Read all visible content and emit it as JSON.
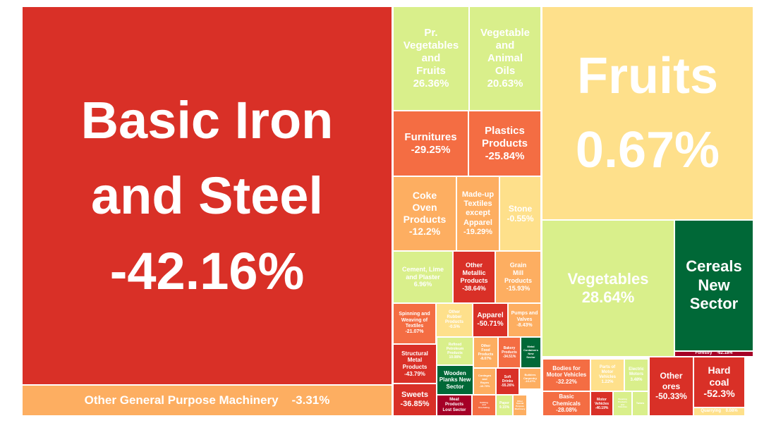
{
  "chart_data": {
    "type": "treemap",
    "title": "",
    "value_unit": "%",
    "color_scale": {
      "neg_large": "#d93027",
      "neg_mid": "#f46d43",
      "neg_small": "#fdae61",
      "neutral": "#fee08b",
      "pos_small": "#d9ef8b",
      "pos_large": "#006837",
      "neg_extreme": "#a50026"
    },
    "items": [
      {
        "name": "Basic Iron and Steel",
        "change": "-42.16%",
        "value": -42.16
      },
      {
        "name": "Other General Purpose Machinery",
        "change": "-3.31%",
        "value": -3.31
      },
      {
        "name": "Pr. Vegetables and Fruits",
        "change": "26.36%",
        "value": 26.36
      },
      {
        "name": "Vegetable and Animal Oils",
        "change": "20.63%",
        "value": 20.63
      },
      {
        "name": "Furnitures",
        "change": "-29.25%",
        "value": -29.25
      },
      {
        "name": "Plastics Products",
        "change": "-25.84%",
        "value": -25.84
      },
      {
        "name": "Coke Oven Products",
        "change": "-12.2%",
        "value": -12.2
      },
      {
        "name": "Made-up Textiles except Apparel",
        "change": "-19.29%",
        "value": -19.29
      },
      {
        "name": "Stone",
        "change": "-0.55%",
        "value": -0.55
      },
      {
        "name": "Cement, Lime and Plaster",
        "change": "6.96%",
        "value": 6.96
      },
      {
        "name": "Other Metallic Products",
        "change": "-38.64%",
        "value": -38.64
      },
      {
        "name": "Grain Mill Products",
        "change": "-15.93%",
        "value": -15.93
      },
      {
        "name": "Spinning and Weaving of Textiles",
        "change": "-21.07%",
        "value": -21.07
      },
      {
        "name": "Other Rubber Products",
        "change": "-0.5%",
        "value": -0.5
      },
      {
        "name": "Apparel",
        "change": "-50.71%",
        "value": -50.71
      },
      {
        "name": "Pumps and Valves",
        "change": "-8.43%",
        "value": -8.43
      },
      {
        "name": "Structural Metal Products",
        "change": "-43.79%",
        "value": -43.79
      },
      {
        "name": "Refined Petroleum Products",
        "change": "10.08%",
        "value": 10.08
      },
      {
        "name": "Other Food Products",
        "change": "-8.07%",
        "value": -8.07
      },
      {
        "name": "Bakery Products",
        "change": "-34.51%",
        "value": -34.51
      },
      {
        "name": "Metal Containers New Sector",
        "change": "",
        "value": 60
      },
      {
        "name": "Wooden Planks New Sector",
        "change": "",
        "value": 60
      },
      {
        "name": "Cordages and Ropes",
        "change": "-16.79%",
        "value": -16.79
      },
      {
        "name": "Soft Drinks",
        "change": "-55.26%",
        "value": -55.26
      },
      {
        "name": "Builders Carpentry",
        "change": "-10.27%",
        "value": -10.27
      },
      {
        "name": "Sweets",
        "change": "-36.85%",
        "value": -36.85
      },
      {
        "name": "Meat Products Lost Sector",
        "change": "",
        "value": -100
      },
      {
        "name": "Knitting and Crocheting",
        "change": "",
        "value": -30
      },
      {
        "name": "Other Special Purpose Machinery",
        "change": "",
        "value": -12
      },
      {
        "name": "Paper",
        "change": "9.15%",
        "value": 9.15
      },
      {
        "name": "Fruits",
        "change": "0.67%",
        "value": 0.67
      },
      {
        "name": "Vegetables",
        "change": "28.64%",
        "value": 28.64
      },
      {
        "name": "Cereals New Sector",
        "change": "",
        "value": 60
      },
      {
        "name": "Forestry",
        "change": "-62.18%",
        "value": -62.18
      },
      {
        "name": "Bodies for Motor Vehicles",
        "change": "-32.22%",
        "value": -32.22
      },
      {
        "name": "Parts of Motor Vehicles",
        "change": "1.22%",
        "value": 1.22
      },
      {
        "name": "Electric Motors",
        "change": "3.48%",
        "value": 3.48
      },
      {
        "name": "Basic Chemicals",
        "change": "-28.08%",
        "value": -28.08
      },
      {
        "name": "Motor Vehicles",
        "change": "-40.19%",
        "value": -40.19
      },
      {
        "name": "Cleaning Products and Toiletries",
        "change": "",
        "value": 5
      },
      {
        "name": "Tubes",
        "change": "",
        "value": 5
      },
      {
        "name": "Other ores",
        "change": "-50.33%",
        "value": -50.33
      },
      {
        "name": "Hard coal",
        "change": "-52.3%",
        "value": -52.3
      },
      {
        "name": "Quarrying",
        "change": "0.08%",
        "value": 0.08
      }
    ]
  }
}
